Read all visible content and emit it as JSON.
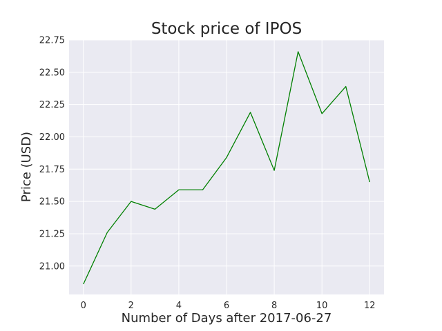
{
  "chart_data": {
    "type": "line",
    "title": "Stock price of IPOS",
    "xlabel": "Number of Days after 2017-06-27",
    "ylabel": "Price (USD)",
    "x": [
      0,
      1,
      2,
      3,
      4,
      5,
      6,
      7,
      8,
      9,
      10,
      11,
      12
    ],
    "series": [
      {
        "values": [
          20.86,
          21.26,
          21.5,
          21.44,
          21.59,
          21.59,
          21.84,
          22.19,
          21.74,
          22.66,
          22.18,
          22.39,
          21.65
        ],
        "color": "#008000"
      }
    ],
    "xlim": [
      -0.6,
      12.6
    ],
    "ylim": [
      20.78,
      22.75
    ],
    "xticks": [
      0,
      2,
      4,
      6,
      8,
      10,
      12
    ],
    "xtick_labels": [
      "0",
      "2",
      "4",
      "6",
      "8",
      "10",
      "12"
    ],
    "yticks": [
      21.0,
      21.25,
      21.5,
      21.75,
      22.0,
      22.25,
      22.5,
      22.75
    ],
    "ytick_labels": [
      "21.00",
      "21.25",
      "21.50",
      "21.75",
      "22.00",
      "22.25",
      "22.50",
      "22.75"
    ],
    "grid": true,
    "background_color": "#eaeaf2",
    "grid_color": "#ffffff"
  }
}
